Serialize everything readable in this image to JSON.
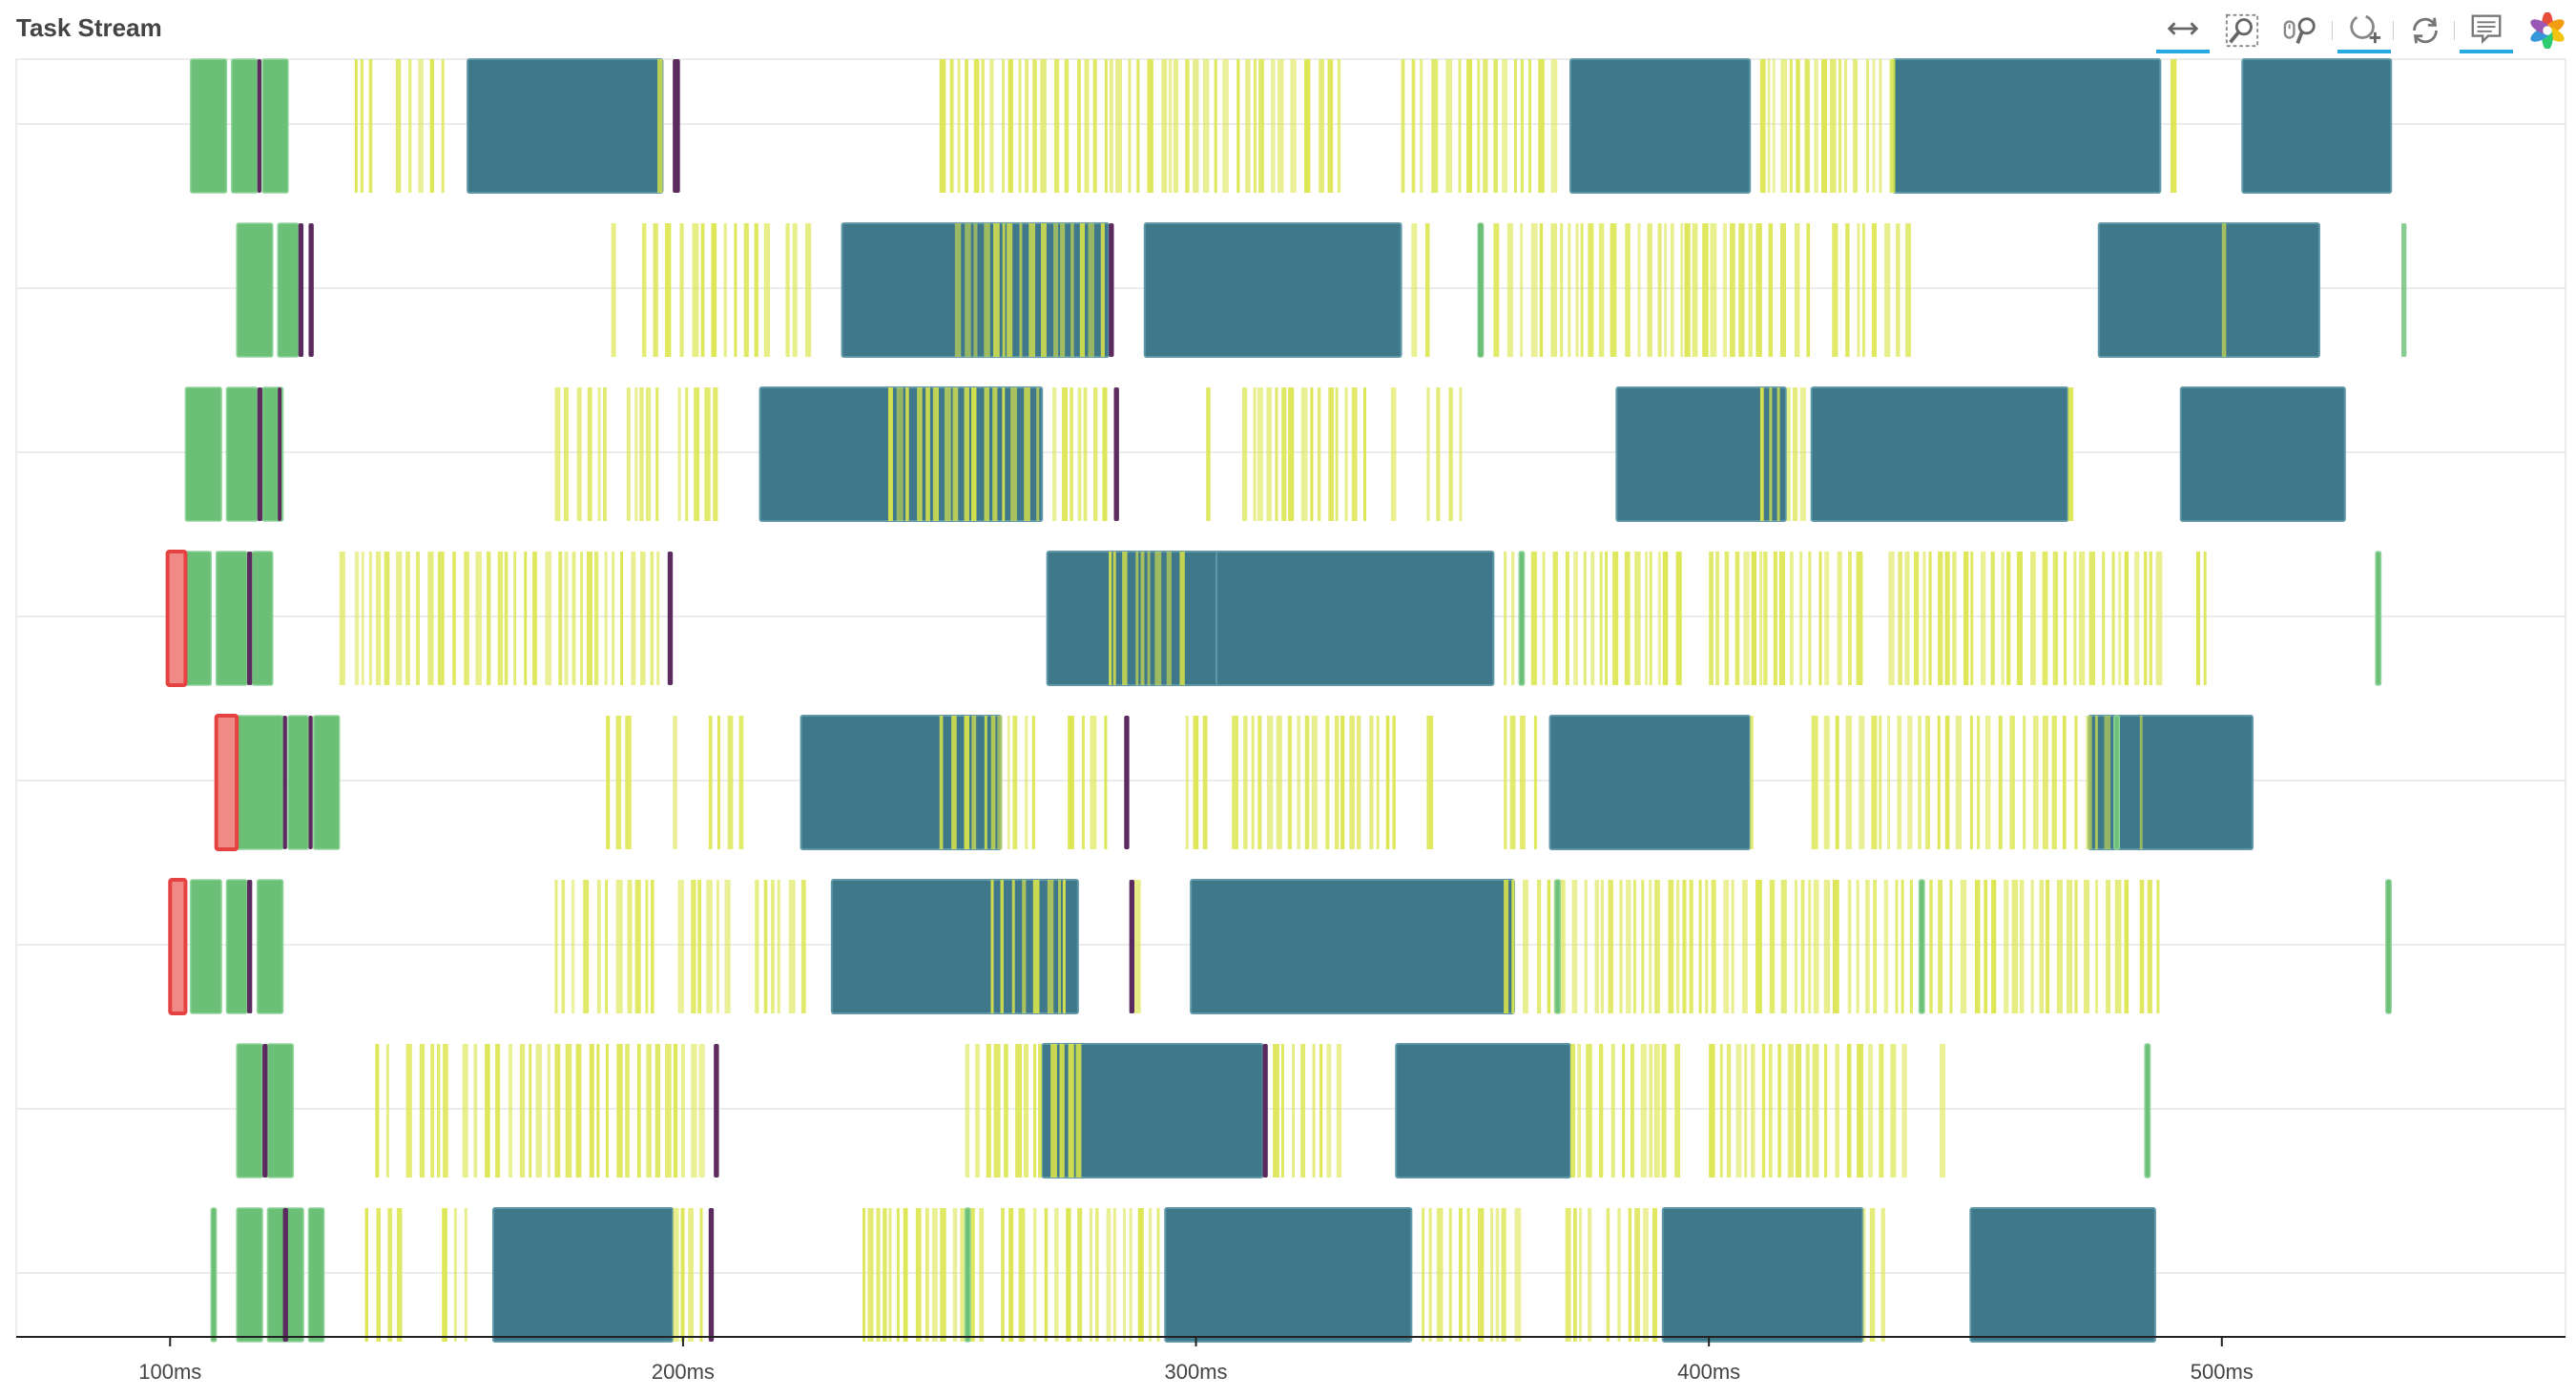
{
  "header": {
    "title": "Task Stream"
  },
  "toolbar": {
    "tools": [
      {
        "name": "xpan-tool-icon",
        "active": true
      },
      {
        "name": "box-zoom-tool-icon",
        "active": false
      },
      {
        "name": "wheel-zoom-tool-icon",
        "active": false
      },
      {
        "name": "zoom-in-tool-icon",
        "active": true
      },
      {
        "name": "reset-tool-icon",
        "active": false
      },
      {
        "name": "hover-tool-icon",
        "active": true
      },
      {
        "name": "bokeh-logo-icon",
        "active": false
      }
    ]
  },
  "chart_data": {
    "type": "bar",
    "orientation": "horizontal-timeline",
    "title": "Task Stream",
    "xlabel": "",
    "ylabel": "",
    "xlim": [
      70,
      567
    ],
    "x_unit": "ms",
    "x_ticks": [
      100,
      200,
      300,
      400,
      500
    ],
    "x_tick_labels": [
      "100ms",
      "200ms",
      "300ms",
      "400ms",
      "500ms"
    ],
    "grid": {
      "horizontal": true,
      "vertical": false
    },
    "colors": {
      "compute_large": "#3e788a",
      "compute_small": "#dbe54a",
      "transfer": "#6cbf76",
      "dependency": "#5b2a5e",
      "error": "#f08a86",
      "error_border": "#e54242"
    },
    "rows": [
      {
        "large": [
          [
            158,
            196
          ],
          [
            373,
            408
          ],
          [
            436,
            488
          ],
          [
            504,
            533
          ]
        ],
        "transfer": [
          [
            104,
            111
          ],
          [
            112,
            117
          ],
          [
            118,
            123
          ]
        ],
        "dependency": [
          [
            117,
            117.8
          ],
          [
            198,
            199.4
          ]
        ],
        "small_ranges": [
          [
            136,
            141
          ],
          [
            144,
            155
          ],
          [
            195,
            197
          ],
          [
            250,
            330
          ],
          [
            340,
            362
          ],
          [
            362,
            372
          ],
          [
            410,
            437
          ],
          [
            490,
            493
          ]
        ]
      },
      {
        "large": [
          [
            231,
            283
          ],
          [
            290,
            340
          ],
          [
            476,
            519
          ]
        ],
        "transfer": [
          [
            113,
            120
          ],
          [
            121,
            125
          ],
          [
            355,
            356
          ]
        ],
        "transfer_thin": [
          [
            355,
            356
          ],
          [
            535,
            536
          ]
        ],
        "dependency": [
          [
            125,
            126
          ],
          [
            127,
            128
          ],
          [
            283,
            284
          ]
        ],
        "small_ranges": [
          [
            186,
            188
          ],
          [
            192,
            218
          ],
          [
            220,
            226
          ],
          [
            253,
            283
          ],
          [
            342,
            347
          ],
          [
            358,
            420
          ],
          [
            424,
            440
          ],
          [
            500,
            502
          ]
        ]
      },
      {
        "large": [
          [
            215,
            270
          ],
          [
            382,
            415
          ],
          [
            420,
            470
          ],
          [
            492,
            524
          ]
        ],
        "transfer": [
          [
            103,
            110
          ],
          [
            111,
            117
          ],
          [
            118,
            122
          ]
        ],
        "dependency": [
          [
            117,
            118
          ],
          [
            121,
            121.7
          ],
          [
            284,
            285
          ]
        ],
        "small_ranges": [
          [
            175,
            187
          ],
          [
            189,
            196
          ],
          [
            199,
            208
          ],
          [
            240,
            270
          ],
          [
            272,
            284
          ],
          [
            302,
            303
          ],
          [
            309,
            335
          ],
          [
            338,
            340
          ],
          [
            345,
            353
          ],
          [
            410,
            420
          ],
          [
            470,
            473
          ]
        ]
      },
      {
        "large": [
          [
            271,
            310
          ],
          [
            304,
            358
          ]
        ],
        "transfer": [
          [
            103,
            108
          ],
          [
            109,
            115
          ],
          [
            116,
            120
          ],
          [
            363,
            364
          ],
          [
            530,
            531
          ]
        ],
        "error": [
          [
            99.5,
            103
          ]
        ],
        "dependency": [
          [
            115,
            116
          ],
          [
            197,
            198
          ]
        ],
        "small_ranges": [
          [
            133,
            135
          ],
          [
            136,
            168
          ],
          [
            169,
            197
          ],
          [
            283,
            300
          ],
          [
            360,
            395
          ],
          [
            400,
            430
          ],
          [
            435,
            490
          ],
          [
            495,
            497
          ]
        ]
      },
      {
        "large": [
          [
            223,
            262
          ],
          [
            369,
            408
          ],
          [
            474,
            506
          ]
        ],
        "transfer": [
          [
            113,
            122
          ],
          [
            123,
            127
          ],
          [
            128,
            133
          ],
          [
            479,
            480
          ]
        ],
        "error": [
          [
            109,
            113
          ]
        ],
        "dependency": [
          [
            122,
            122.8
          ],
          [
            127,
            127.8
          ],
          [
            286,
            287
          ]
        ],
        "small_ranges": [
          [
            185,
            190
          ],
          [
            198,
            199
          ],
          [
            205,
            212
          ],
          [
            250,
            270
          ],
          [
            275,
            284
          ],
          [
            298,
            303
          ],
          [
            307,
            340
          ],
          [
            345,
            348
          ],
          [
            360,
            368
          ],
          [
            408,
            410
          ],
          [
            420,
            480
          ],
          [
            484,
            486
          ]
        ]
      },
      {
        "large": [
          [
            229,
            277
          ],
          [
            299,
            362
          ]
        ],
        "transfer": [
          [
            104,
            110
          ],
          [
            111,
            115
          ],
          [
            117,
            122
          ],
          [
            370,
            371
          ],
          [
            441,
            442
          ],
          [
            532,
            533
          ]
        ],
        "error": [
          [
            100,
            103
          ]
        ],
        "dependency": [
          [
            115,
            116
          ],
          [
            287,
            288
          ]
        ],
        "small_ranges": [
          [
            175,
            195
          ],
          [
            199,
            210
          ],
          [
            214,
            225
          ],
          [
            260,
            277
          ],
          [
            288,
            290
          ],
          [
            360,
            440
          ],
          [
            441,
            482
          ],
          [
            484,
            490
          ]
        ]
      },
      {
        "large": [
          [
            270,
            313
          ],
          [
            339,
            373
          ]
        ],
        "transfer": [
          [
            113,
            118
          ],
          [
            119,
            124
          ],
          [
            485,
            486
          ]
        ],
        "dependency": [
          [
            118,
            119
          ],
          [
            206,
            207
          ],
          [
            313,
            314
          ]
        ],
        "small_ranges": [
          [
            140,
            143
          ],
          [
            146,
            155
          ],
          [
            157,
            205
          ],
          [
            255,
            278
          ],
          [
            315,
            330
          ],
          [
            373,
            395
          ],
          [
            400,
            440
          ],
          [
            445,
            447
          ]
        ]
      },
      {
        "large": [
          [
            163,
            198
          ],
          [
            294,
            342
          ],
          [
            391,
            430
          ],
          [
            451,
            487
          ]
        ],
        "transfer": [
          [
            108,
            109
          ],
          [
            113,
            118
          ],
          [
            119,
            126
          ],
          [
            127,
            130
          ],
          [
            255,
            256
          ]
        ],
        "dependency": [
          [
            122,
            123
          ],
          [
            205,
            206
          ]
        ],
        "small_ranges": [
          [
            138,
            146
          ],
          [
            153,
            159
          ],
          [
            198,
            205
          ],
          [
            235,
            260
          ],
          [
            262,
            293
          ],
          [
            344,
            365
          ],
          [
            372,
            378
          ],
          [
            380,
            390
          ],
          [
            430,
            436
          ]
        ]
      }
    ]
  }
}
